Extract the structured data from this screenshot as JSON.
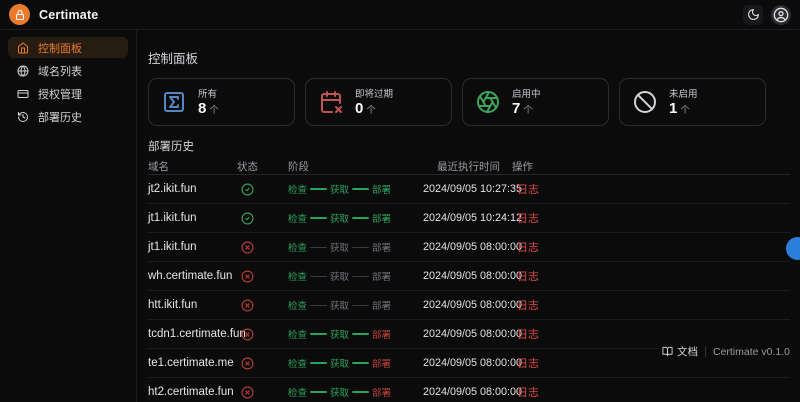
{
  "brand": {
    "name": "Certimate",
    "logo_icon": "lock-icon"
  },
  "topbar": {
    "theme_toggle_icon": "moon-icon",
    "user_icon": "user-circle-icon"
  },
  "sidebar": {
    "items": [
      {
        "label": "控制面板",
        "icon": "home-icon",
        "active": true
      },
      {
        "label": "域名列表",
        "icon": "globe-icon",
        "active": false
      },
      {
        "label": "授权管理",
        "icon": "id-card-icon",
        "active": false
      },
      {
        "label": "部署历史",
        "icon": "history-icon",
        "active": false
      }
    ]
  },
  "page": {
    "title": "控制面板",
    "section_title": "部署历史"
  },
  "stats": [
    {
      "key": "all",
      "label": "所有",
      "value": "8",
      "unit": "个",
      "icon": "sigma-square-icon",
      "color": "#5585c2"
    },
    {
      "key": "expiring-soon",
      "label": "即将过期",
      "value": "0",
      "unit": "个",
      "icon": "calendar-x-icon",
      "color": "#c05452"
    },
    {
      "key": "enabled",
      "label": "启用中",
      "value": "7",
      "unit": "个",
      "icon": "aperture-icon",
      "color": "#3aa65c"
    },
    {
      "key": "disabled",
      "label": "未启用",
      "value": "1",
      "unit": "个",
      "icon": "ban-icon",
      "color": "#d4d4d8"
    }
  ],
  "table": {
    "headers": [
      "域名",
      "状态",
      "阶段",
      "最近执行时间",
      "操作"
    ],
    "stage_labels": [
      "检查",
      "获取",
      "部署"
    ],
    "log_label": "日志",
    "rows": [
      {
        "domain": "jt2.ikit.fun",
        "status": "success",
        "time": "2024/09/05 10:27:35",
        "stages": [
          "done",
          "done",
          "done"
        ],
        "lines": [
          "done",
          "done"
        ]
      },
      {
        "domain": "jt1.ikit.fun",
        "status": "success",
        "time": "2024/09/05 10:24:12",
        "stages": [
          "done",
          "done",
          "done"
        ],
        "lines": [
          "done",
          "done"
        ]
      },
      {
        "domain": "jt1.ikit.fun",
        "status": "error",
        "time": "2024/09/05 08:00:00",
        "stages": [
          "done",
          "pending",
          "pending"
        ],
        "lines": [
          "pending",
          "pending"
        ]
      },
      {
        "domain": "wh.certimate.fun",
        "status": "error",
        "time": "2024/09/05 08:00:00",
        "stages": [
          "done",
          "pending",
          "pending"
        ],
        "lines": [
          "pending",
          "pending"
        ]
      },
      {
        "domain": "htt.ikit.fun",
        "status": "error",
        "time": "2024/09/05 08:00:00",
        "stages": [
          "done",
          "pending",
          "pending"
        ],
        "lines": [
          "pending",
          "pending"
        ]
      },
      {
        "domain": "tcdn1.certimate.fun",
        "status": "error",
        "time": "2024/09/05 08:00:00",
        "stages": [
          "done",
          "done",
          "failed"
        ],
        "lines": [
          "done",
          "done"
        ]
      },
      {
        "domain": "te1.certimate.me",
        "status": "error",
        "time": "2024/09/05 08:00:00",
        "stages": [
          "done",
          "done",
          "failed"
        ],
        "lines": [
          "done",
          "done"
        ]
      },
      {
        "domain": "ht2.certimate.fun",
        "status": "error",
        "time": "2024/09/05 08:00:00",
        "stages": [
          "done",
          "done",
          "failed"
        ],
        "lines": [
          "done",
          "done"
        ]
      }
    ]
  },
  "footer": {
    "docs_label": "文档",
    "docs_icon": "book-icon",
    "version": "Certimate v0.1.0"
  },
  "colors": {
    "accent": "#e97b2c",
    "success": "#3aa65c",
    "danger": "#bf4038",
    "stage_done": "#2ba35c",
    "stage_pending": "#71717a",
    "stage_failed": "#c0403a",
    "line_pending": "#3a3a3e",
    "log_link": "#dc4747",
    "widget_blue": "#2b7fd9"
  }
}
